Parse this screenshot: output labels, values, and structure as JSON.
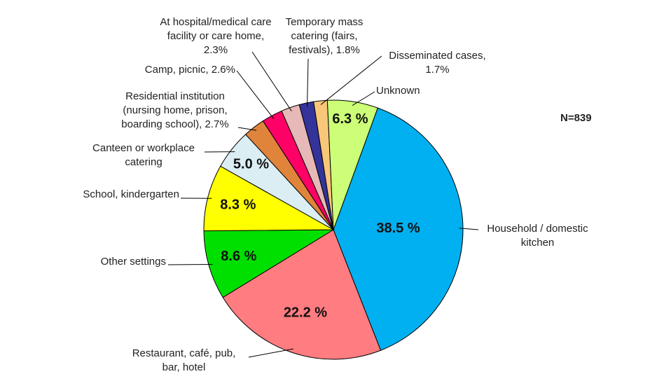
{
  "chart_data": {
    "type": "pie",
    "annotation": "N=839",
    "categories": [
      "Household / domestic kitchen",
      "Restaurant, café, pub, bar, hotel",
      "Other settings",
      "School, kindergarten",
      "Canteen or workplace catering",
      "Residential institution (nursing home, prison, boarding school), 2.7%",
      "Camp, picnic, 2.6%",
      "At hospital/medical care facility or care home, 2.3%",
      "Temporary mass catering (fairs, festivals), 1.8%",
      "Disseminated cases, 1.7%",
      "Unknown"
    ],
    "values": [
      38.5,
      22.2,
      8.6,
      8.3,
      5.0,
      2.7,
      2.6,
      2.3,
      1.8,
      1.7,
      6.3
    ],
    "value_labels": [
      "38.5 %",
      "22.2 %",
      "8.6 %",
      "8.3 %",
      "5.0 %",
      null,
      null,
      null,
      null,
      null,
      "6.3 %"
    ],
    "colors": [
      "#00b0f0",
      "#ff7c80",
      "#00e000",
      "#ffff00",
      "#daeef3",
      "#e0843c",
      "#ff0066",
      "#e6b8b7",
      "#333399",
      "#f9c77a",
      "#ccff77"
    ]
  }
}
